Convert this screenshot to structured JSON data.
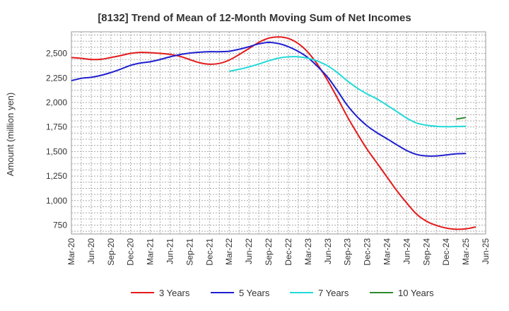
{
  "chart_data": {
    "type": "line",
    "title": "[8132]  Trend of Mean of 12-Month Moving Sum of Net Incomes",
    "xlabel": "",
    "ylabel": "Amount (million yen)",
    "ylim": [
      660,
      2720
    ],
    "yticks": [
      750,
      1000,
      1250,
      1500,
      1750,
      2000,
      2250,
      2500
    ],
    "ytick_labels": [
      "750",
      "1,000",
      "1,250",
      "1,500",
      "1,750",
      "2,000",
      "2,250",
      "2,500"
    ],
    "categories": [
      "Mar-20",
      "Jun-20",
      "Sep-20",
      "Dec-20",
      "Mar-21",
      "Jun-21",
      "Sep-21",
      "Dec-21",
      "Mar-22",
      "Jun-22",
      "Sep-22",
      "Dec-22",
      "Mar-23",
      "Jun-23",
      "Sep-23",
      "Dec-23",
      "Mar-24",
      "Jun-24",
      "Sep-24",
      "Dec-24",
      "Mar-25",
      "Jun-25"
    ],
    "grid": true,
    "legend_position": "bottom",
    "series": [
      {
        "name": "3 Years",
        "color": "#e31a1c",
        "points": [
          [
            0,
            2458
          ],
          [
            1,
            2450
          ],
          [
            2,
            2438
          ],
          [
            3,
            2440
          ],
          [
            4,
            2458
          ],
          [
            5,
            2478
          ],
          [
            6,
            2500
          ],
          [
            7,
            2510
          ],
          [
            8,
            2507
          ],
          [
            9,
            2500
          ],
          [
            10,
            2490
          ],
          [
            11,
            2470
          ],
          [
            12,
            2437
          ],
          [
            13,
            2405
          ],
          [
            14,
            2390
          ],
          [
            15,
            2398
          ],
          [
            16,
            2432
          ],
          [
            17,
            2488
          ],
          [
            18,
            2550
          ],
          [
            19,
            2612
          ],
          [
            20,
            2655
          ],
          [
            21,
            2668
          ],
          [
            22,
            2652
          ],
          [
            23,
            2600
          ],
          [
            24,
            2510
          ],
          [
            25,
            2380
          ],
          [
            26,
            2220
          ],
          [
            27,
            2040
          ],
          [
            28,
            1850
          ],
          [
            29,
            1680
          ],
          [
            30,
            1520
          ],
          [
            31,
            1380
          ],
          [
            32,
            1240
          ],
          [
            33,
            1100
          ],
          [
            34,
            975
          ],
          [
            35,
            862
          ],
          [
            36,
            790
          ],
          [
            37,
            747
          ],
          [
            38,
            720
          ],
          [
            39,
            708
          ],
          [
            40,
            712
          ],
          [
            41,
            732
          ]
        ]
      },
      {
        "name": "5 Years",
        "color": "#1f1fd0",
        "points": [
          [
            0,
            2222
          ],
          [
            1,
            2246
          ],
          [
            2,
            2256
          ],
          [
            3,
            2276
          ],
          [
            4,
            2305
          ],
          [
            5,
            2340
          ],
          [
            6,
            2378
          ],
          [
            7,
            2402
          ],
          [
            8,
            2415
          ],
          [
            9,
            2438
          ],
          [
            10,
            2465
          ],
          [
            11,
            2488
          ],
          [
            12,
            2503
          ],
          [
            13,
            2512
          ],
          [
            14,
            2517
          ],
          [
            15,
            2517
          ],
          [
            16,
            2522
          ],
          [
            17,
            2542
          ],
          [
            18,
            2568
          ],
          [
            19,
            2597
          ],
          [
            20,
            2612
          ],
          [
            21,
            2600
          ],
          [
            22,
            2568
          ],
          [
            23,
            2520
          ],
          [
            24,
            2455
          ],
          [
            25,
            2362
          ],
          [
            26,
            2255
          ],
          [
            27,
            2115
          ],
          [
            28,
            1967
          ],
          [
            29,
            1852
          ],
          [
            30,
            1760
          ],
          [
            31,
            1690
          ],
          [
            32,
            1630
          ],
          [
            33,
            1568
          ],
          [
            34,
            1510
          ],
          [
            35,
            1470
          ],
          [
            36,
            1455
          ],
          [
            37,
            1455
          ],
          [
            38,
            1465
          ],
          [
            39,
            1477
          ],
          [
            40,
            1480
          ]
        ]
      },
      {
        "name": "7 Years",
        "color": "#22dada",
        "points": [
          [
            16,
            2318
          ],
          [
            17,
            2338
          ],
          [
            18,
            2362
          ],
          [
            19,
            2392
          ],
          [
            20,
            2425
          ],
          [
            21,
            2452
          ],
          [
            22,
            2465
          ],
          [
            23,
            2465
          ],
          [
            24,
            2450
          ],
          [
            25,
            2420
          ],
          [
            26,
            2372
          ],
          [
            27,
            2302
          ],
          [
            28,
            2218
          ],
          [
            29,
            2145
          ],
          [
            30,
            2085
          ],
          [
            31,
            2035
          ],
          [
            32,
            1972
          ],
          [
            33,
            1907
          ],
          [
            34,
            1840
          ],
          [
            35,
            1790
          ],
          [
            36,
            1768
          ],
          [
            37,
            1757
          ],
          [
            38,
            1753
          ],
          [
            39,
            1755
          ],
          [
            40,
            1757
          ]
        ]
      },
      {
        "name": "10 Years",
        "color": "#2e8b2e",
        "points": [
          [
            39,
            1830
          ],
          [
            40,
            1847
          ]
        ]
      }
    ]
  }
}
